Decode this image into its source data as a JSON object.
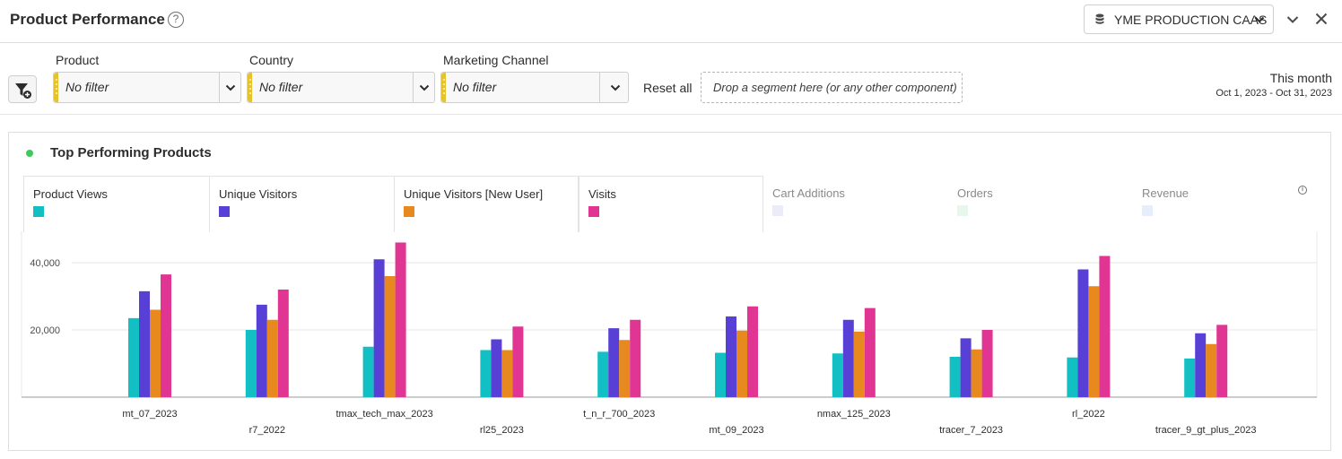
{
  "header": {
    "title": "Product Performance",
    "help_icon": "?",
    "dataset": "YME PRODUCTION CAAS"
  },
  "filters": {
    "items": [
      {
        "label": "Product",
        "value": "No filter"
      },
      {
        "label": "Country",
        "value": "No filter"
      },
      {
        "label": "Marketing Channel",
        "value": "No filter"
      }
    ],
    "reset_label": "Reset all",
    "dropzone_text": "Drop a segment here (or any other component)",
    "date_title": "This month",
    "date_range": "Oct 1, 2023 - Oct 31, 2023"
  },
  "panel": {
    "title": "Top Performing Products",
    "status_color": "#3ec95a"
  },
  "legend": [
    {
      "name": "Product Views",
      "color": "#12bfc2",
      "active": true
    },
    {
      "name": "Unique Visitors",
      "color": "#5840d6",
      "active": true
    },
    {
      "name": "Unique Visitors [New User]",
      "color": "#e8891f",
      "active": true
    },
    {
      "name": "Visits",
      "color": "#e03592",
      "active": true
    },
    {
      "name": "Cart Additions",
      "color": "#ecebf9",
      "active": false
    },
    {
      "name": "Orders",
      "color": "#e8f7ec",
      "active": false
    },
    {
      "name": "Revenue",
      "color": "#e6eefb",
      "active": false
    }
  ],
  "chart_data": {
    "type": "bar",
    "categories": [
      "mt_07_2023",
      "r7_2022",
      "tmax_tech_max_2023",
      "rl25_2023",
      "t_n_r_700_2023",
      "mt_09_2023",
      "nmax_125_2023",
      "tracer_7_2023",
      "rl_2022",
      "tracer_9_gt_plus_2023"
    ],
    "series": [
      {
        "name": "Product Views",
        "values": [
          23500,
          20000,
          15000,
          14000,
          13500,
          13200,
          13000,
          12000,
          11800,
          11500
        ]
      },
      {
        "name": "Unique Visitors",
        "values": [
          31500,
          27500,
          41000,
          17200,
          20500,
          24000,
          23000,
          17500,
          38000,
          19000
        ]
      },
      {
        "name": "Unique Visitors [New User]",
        "values": [
          26000,
          23000,
          36000,
          14000,
          17000,
          19800,
          19500,
          14200,
          33000,
          15800
        ]
      },
      {
        "name": "Visits",
        "values": [
          36500,
          32000,
          46000,
          21000,
          23000,
          27000,
          26500,
          20000,
          42000,
          21500
        ]
      }
    ],
    "yticks": [
      "20,000",
      "40,000"
    ],
    "ytick_values": [
      20000,
      40000
    ],
    "ylim": [
      0,
      48000
    ],
    "grid": true
  }
}
